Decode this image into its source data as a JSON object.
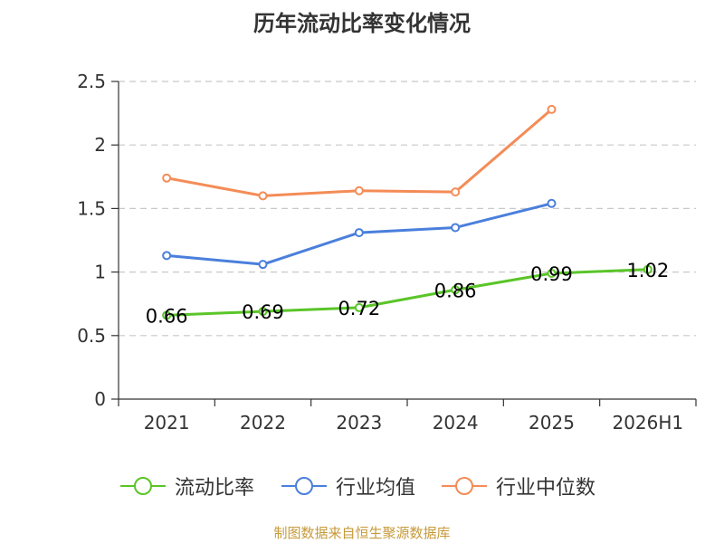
{
  "title": "历年流动比率变化情况",
  "source": "制图数据来自恒生聚源数据库",
  "chart_data": {
    "type": "line",
    "categories": [
      "2021",
      "2022",
      "2023",
      "2024",
      "2025",
      "2026H1"
    ],
    "y_ticks": [
      "0",
      "0.5",
      "1",
      "1.5",
      "2",
      "2.5"
    ],
    "ylim": [
      0,
      2.5
    ],
    "grid": true,
    "legend_position": "bottom",
    "series": [
      {
        "name": "流动比率",
        "color": "#5ac528",
        "values": [
          0.66,
          0.69,
          0.72,
          0.86,
          0.99,
          1.02
        ],
        "labels": [
          "0.66",
          "0.69",
          "0.72",
          "0.86",
          "0.99",
          "1.02"
        ]
      },
      {
        "name": "行业均值",
        "color": "#4a7fdc",
        "values": [
          1.13,
          1.06,
          1.31,
          1.35,
          1.54,
          null
        ]
      },
      {
        "name": "行业中位数",
        "color": "#f48c57",
        "values": [
          1.74,
          1.6,
          1.64,
          1.63,
          2.28,
          null
        ]
      }
    ]
  }
}
